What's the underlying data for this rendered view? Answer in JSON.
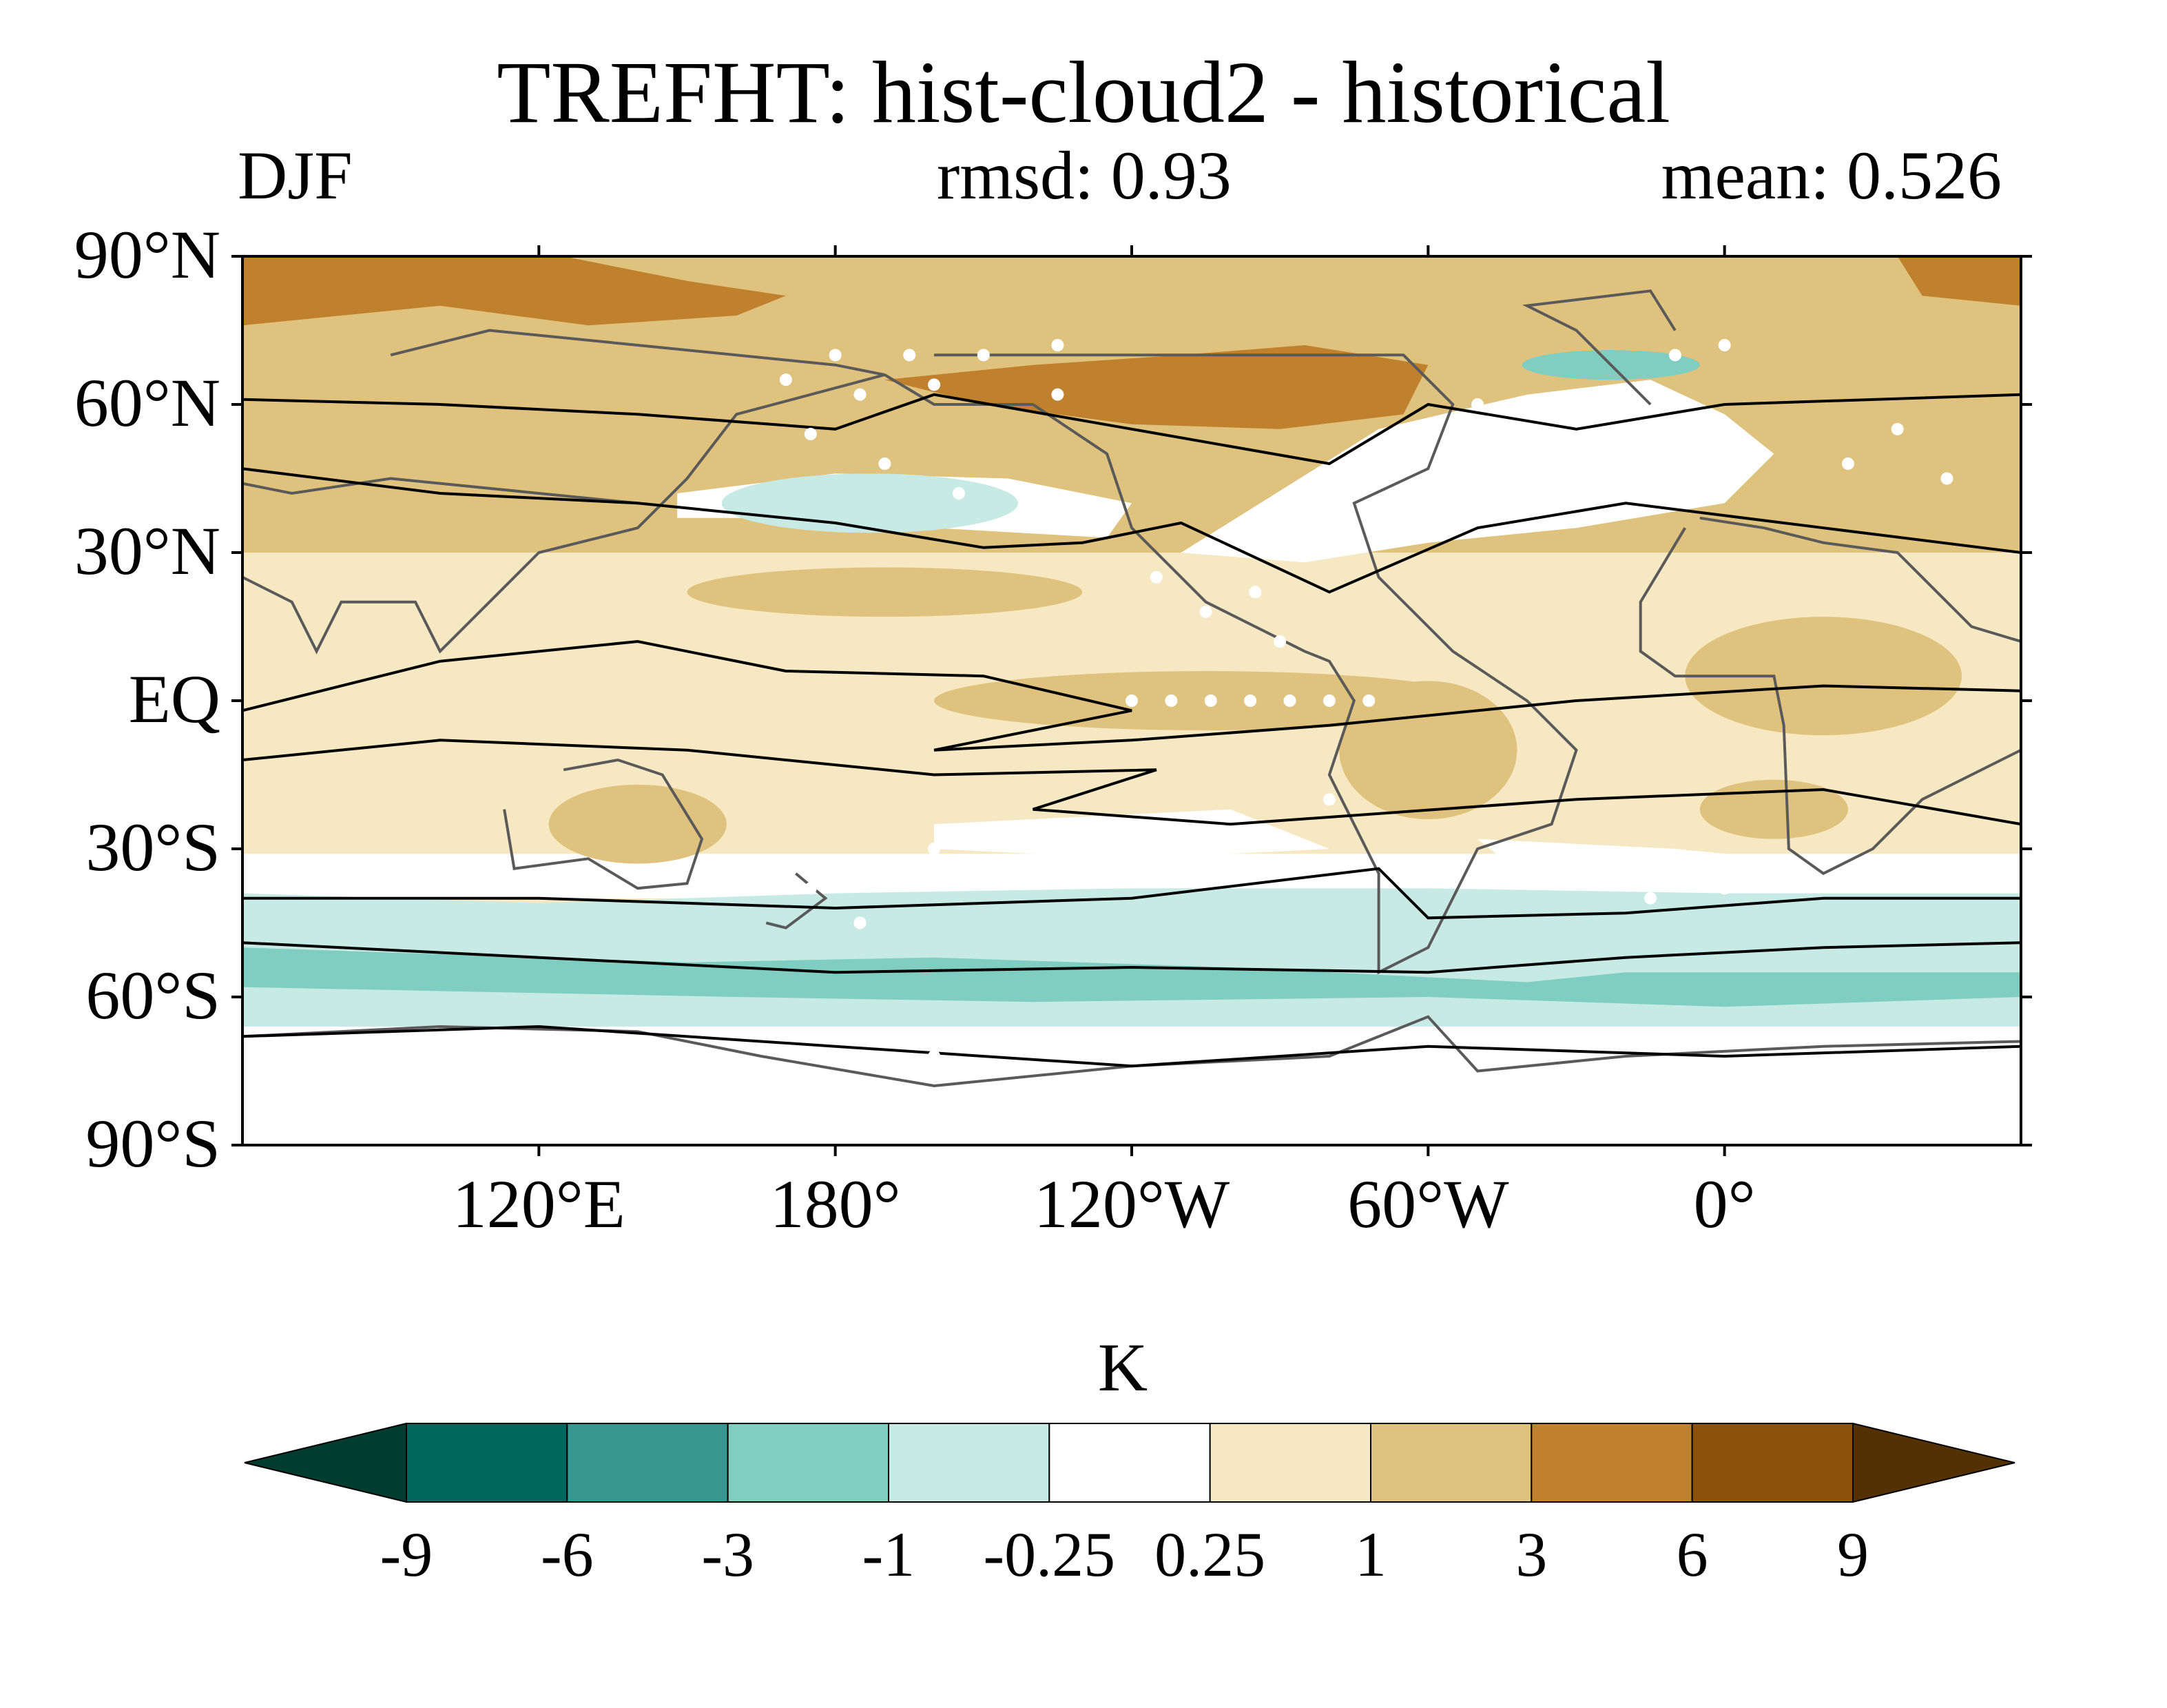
{
  "header": {
    "title": "TREFHT: hist-cloud2 - historical",
    "season": "DJF",
    "rmsd": "rmsd: 0.93",
    "mean": "mean: 0.526"
  },
  "map": {
    "projection": "equirectangular",
    "lon_range": [
      60,
      420
    ],
    "lat_range": [
      -90,
      90
    ],
    "lat_ticks": [
      "90°N",
      "60°N",
      "30°N",
      "EQ",
      "30°S",
      "60°S",
      "90°S"
    ],
    "lon_ticks": [
      "120°E",
      "180°",
      "120°W",
      "60°W",
      "0°"
    ],
    "stippling": "white dots mark significant regions",
    "contours": "black lines show climatology; grey lines are coastlines"
  },
  "colorbar": {
    "unit": "K",
    "levels": [
      "-9",
      "-6",
      "-3",
      "-1",
      "-0.25",
      "0.25",
      "1",
      "3",
      "6",
      "9"
    ],
    "colors": [
      "#003c30",
      "#01665e",
      "#35978f",
      "#80cdc1",
      "#c7eae5",
      "#ffffff",
      "#f6e8c3",
      "#dfc27d",
      "#bf812d",
      "#8c510a",
      "#543005"
    ]
  },
  "chart_data": {
    "type": "heatmap",
    "title": "TREFHT: hist-cloud2 - historical",
    "subtitle_left": "DJF",
    "subtitle_center": "rmsd: 0.93",
    "subtitle_right": "mean: 0.526",
    "colorbar_label": "K",
    "xlim": [
      60,
      420
    ],
    "ylim": [
      -90,
      90
    ],
    "zonal_bands": [
      {
        "lat": [
          75,
          90
        ],
        "range": "3 to 6",
        "color": "#bf812d"
      },
      {
        "lat": [
          40,
          75
        ],
        "range": "1 to 3",
        "color": "#dfc27d"
      },
      {
        "lat": [
          -30,
          40
        ],
        "range": "0.25 to 1",
        "color": "#f6e8c3"
      },
      {
        "lat": [
          -40,
          -30
        ],
        "range": "-0.25 to 0.25",
        "color": "#ffffff"
      },
      {
        "lat": [
          -65,
          -40
        ],
        "range": "-1 to -0.25",
        "color": "#c7eae5"
      },
      {
        "lat": [
          -62,
          -52
        ],
        "range": "-3 to -1",
        "color": "#80cdc1"
      },
      {
        "lat": [
          -90,
          -65
        ],
        "range": "-0.25 to 0.25",
        "color": "#ffffff"
      }
    ]
  }
}
